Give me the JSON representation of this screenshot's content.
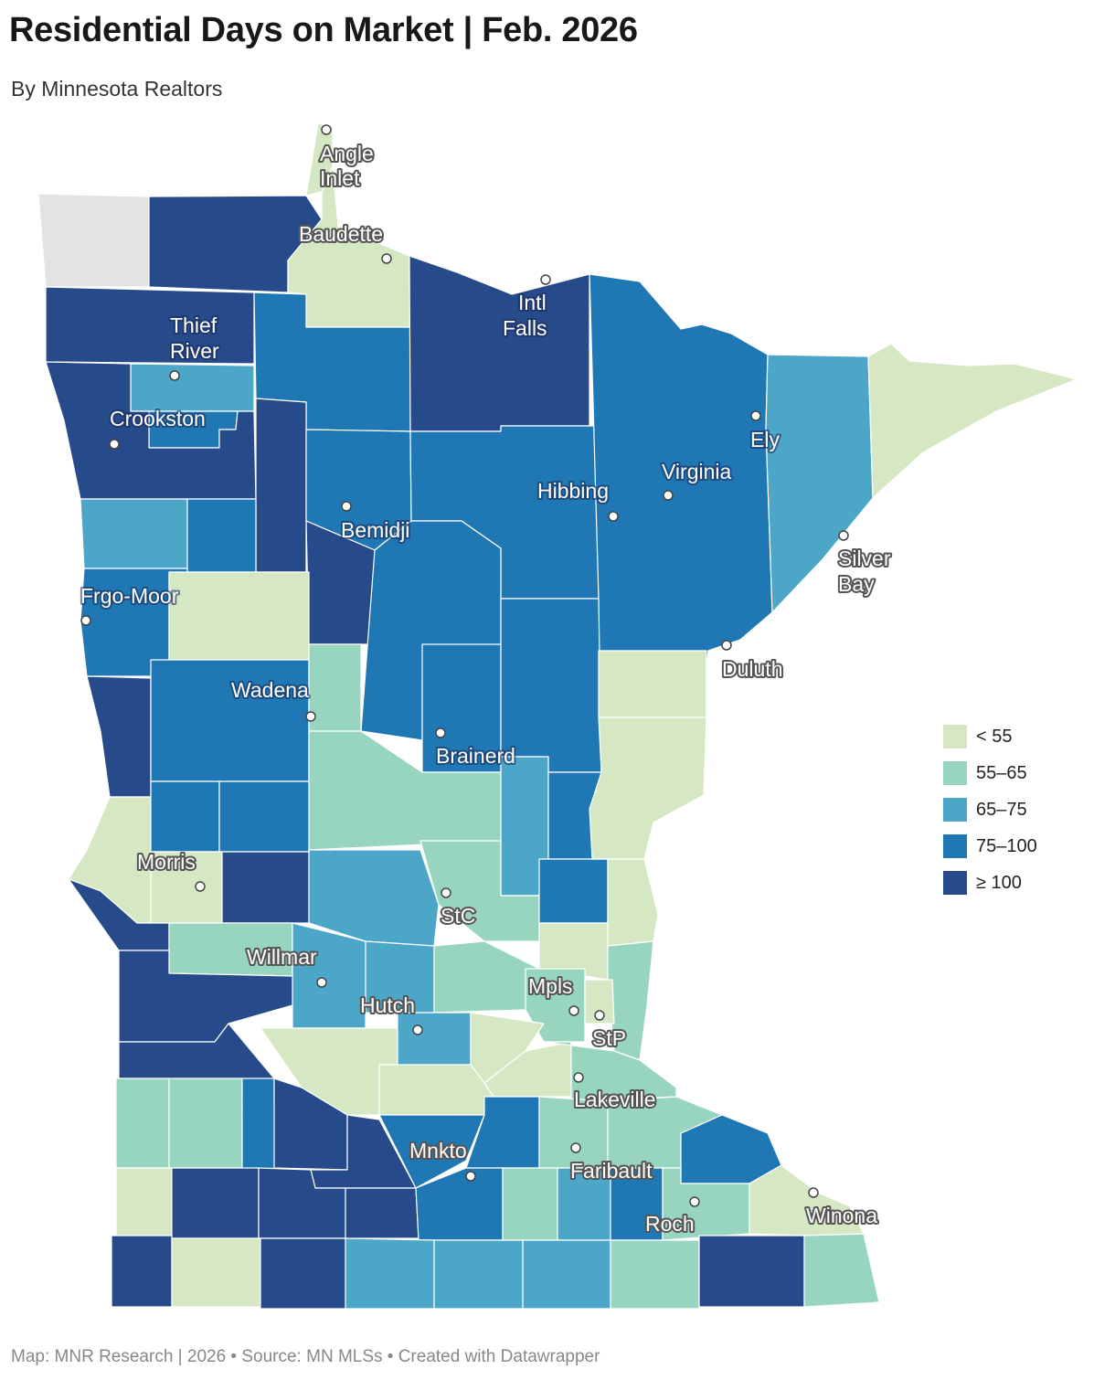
{
  "header": {
    "title": "Residential Days on Market  |  Feb. 2026",
    "subtitle": "By Minnesota Realtors"
  },
  "footer": {
    "text": "Map: MNR Research | 2026 • Source: MN MLSs • Created with Datawrapper"
  },
  "colors": {
    "lt55": "#d5e8c3",
    "c55_65": "#98d5be",
    "c65_75": "#4ba6c8",
    "c75_100": "#1f78b4",
    "ge100": "#274a8a",
    "nodata": "#e3e3e3",
    "border": "#ffffff"
  },
  "legend": {
    "items": [
      {
        "label": "< 55",
        "color": "#d5e8c3"
      },
      {
        "label": "55–65",
        "color": "#98d5be"
      },
      {
        "label": "65–75",
        "color": "#4ba6c8"
      },
      {
        "label": "75–100",
        "color": "#1f78b4"
      },
      {
        "label": "≥ 100",
        "color": "#274a8a"
      }
    ]
  },
  "cities": {
    "angle_inlet": [
      "Angle",
      "Inlet"
    ],
    "baudette": "Baudette",
    "intl_falls": [
      "Intl",
      "Falls"
    ],
    "thief_river": [
      "Thief",
      "River"
    ],
    "crookston": "Crookston",
    "ely": "Ely",
    "virginia": "Virginia",
    "hibbing": "Hibbing",
    "bemidji": "Bemidji",
    "silver_bay": [
      "Silver",
      "Bay"
    ],
    "frgo_moor": "Frgo-Moor",
    "duluth": "Duluth",
    "wadena": "Wadena",
    "brainerd": "Brainerd",
    "morris": "Morris",
    "stc": "StC",
    "willmar": "Willmar",
    "mpls": "Mpls",
    "hutch": "Hutch",
    "stp": "StP",
    "lakeville": "Lakeville",
    "mnkto": "Mnkto",
    "faribault": "Faribault",
    "roch": "Roch",
    "winona": "Winona"
  }
}
